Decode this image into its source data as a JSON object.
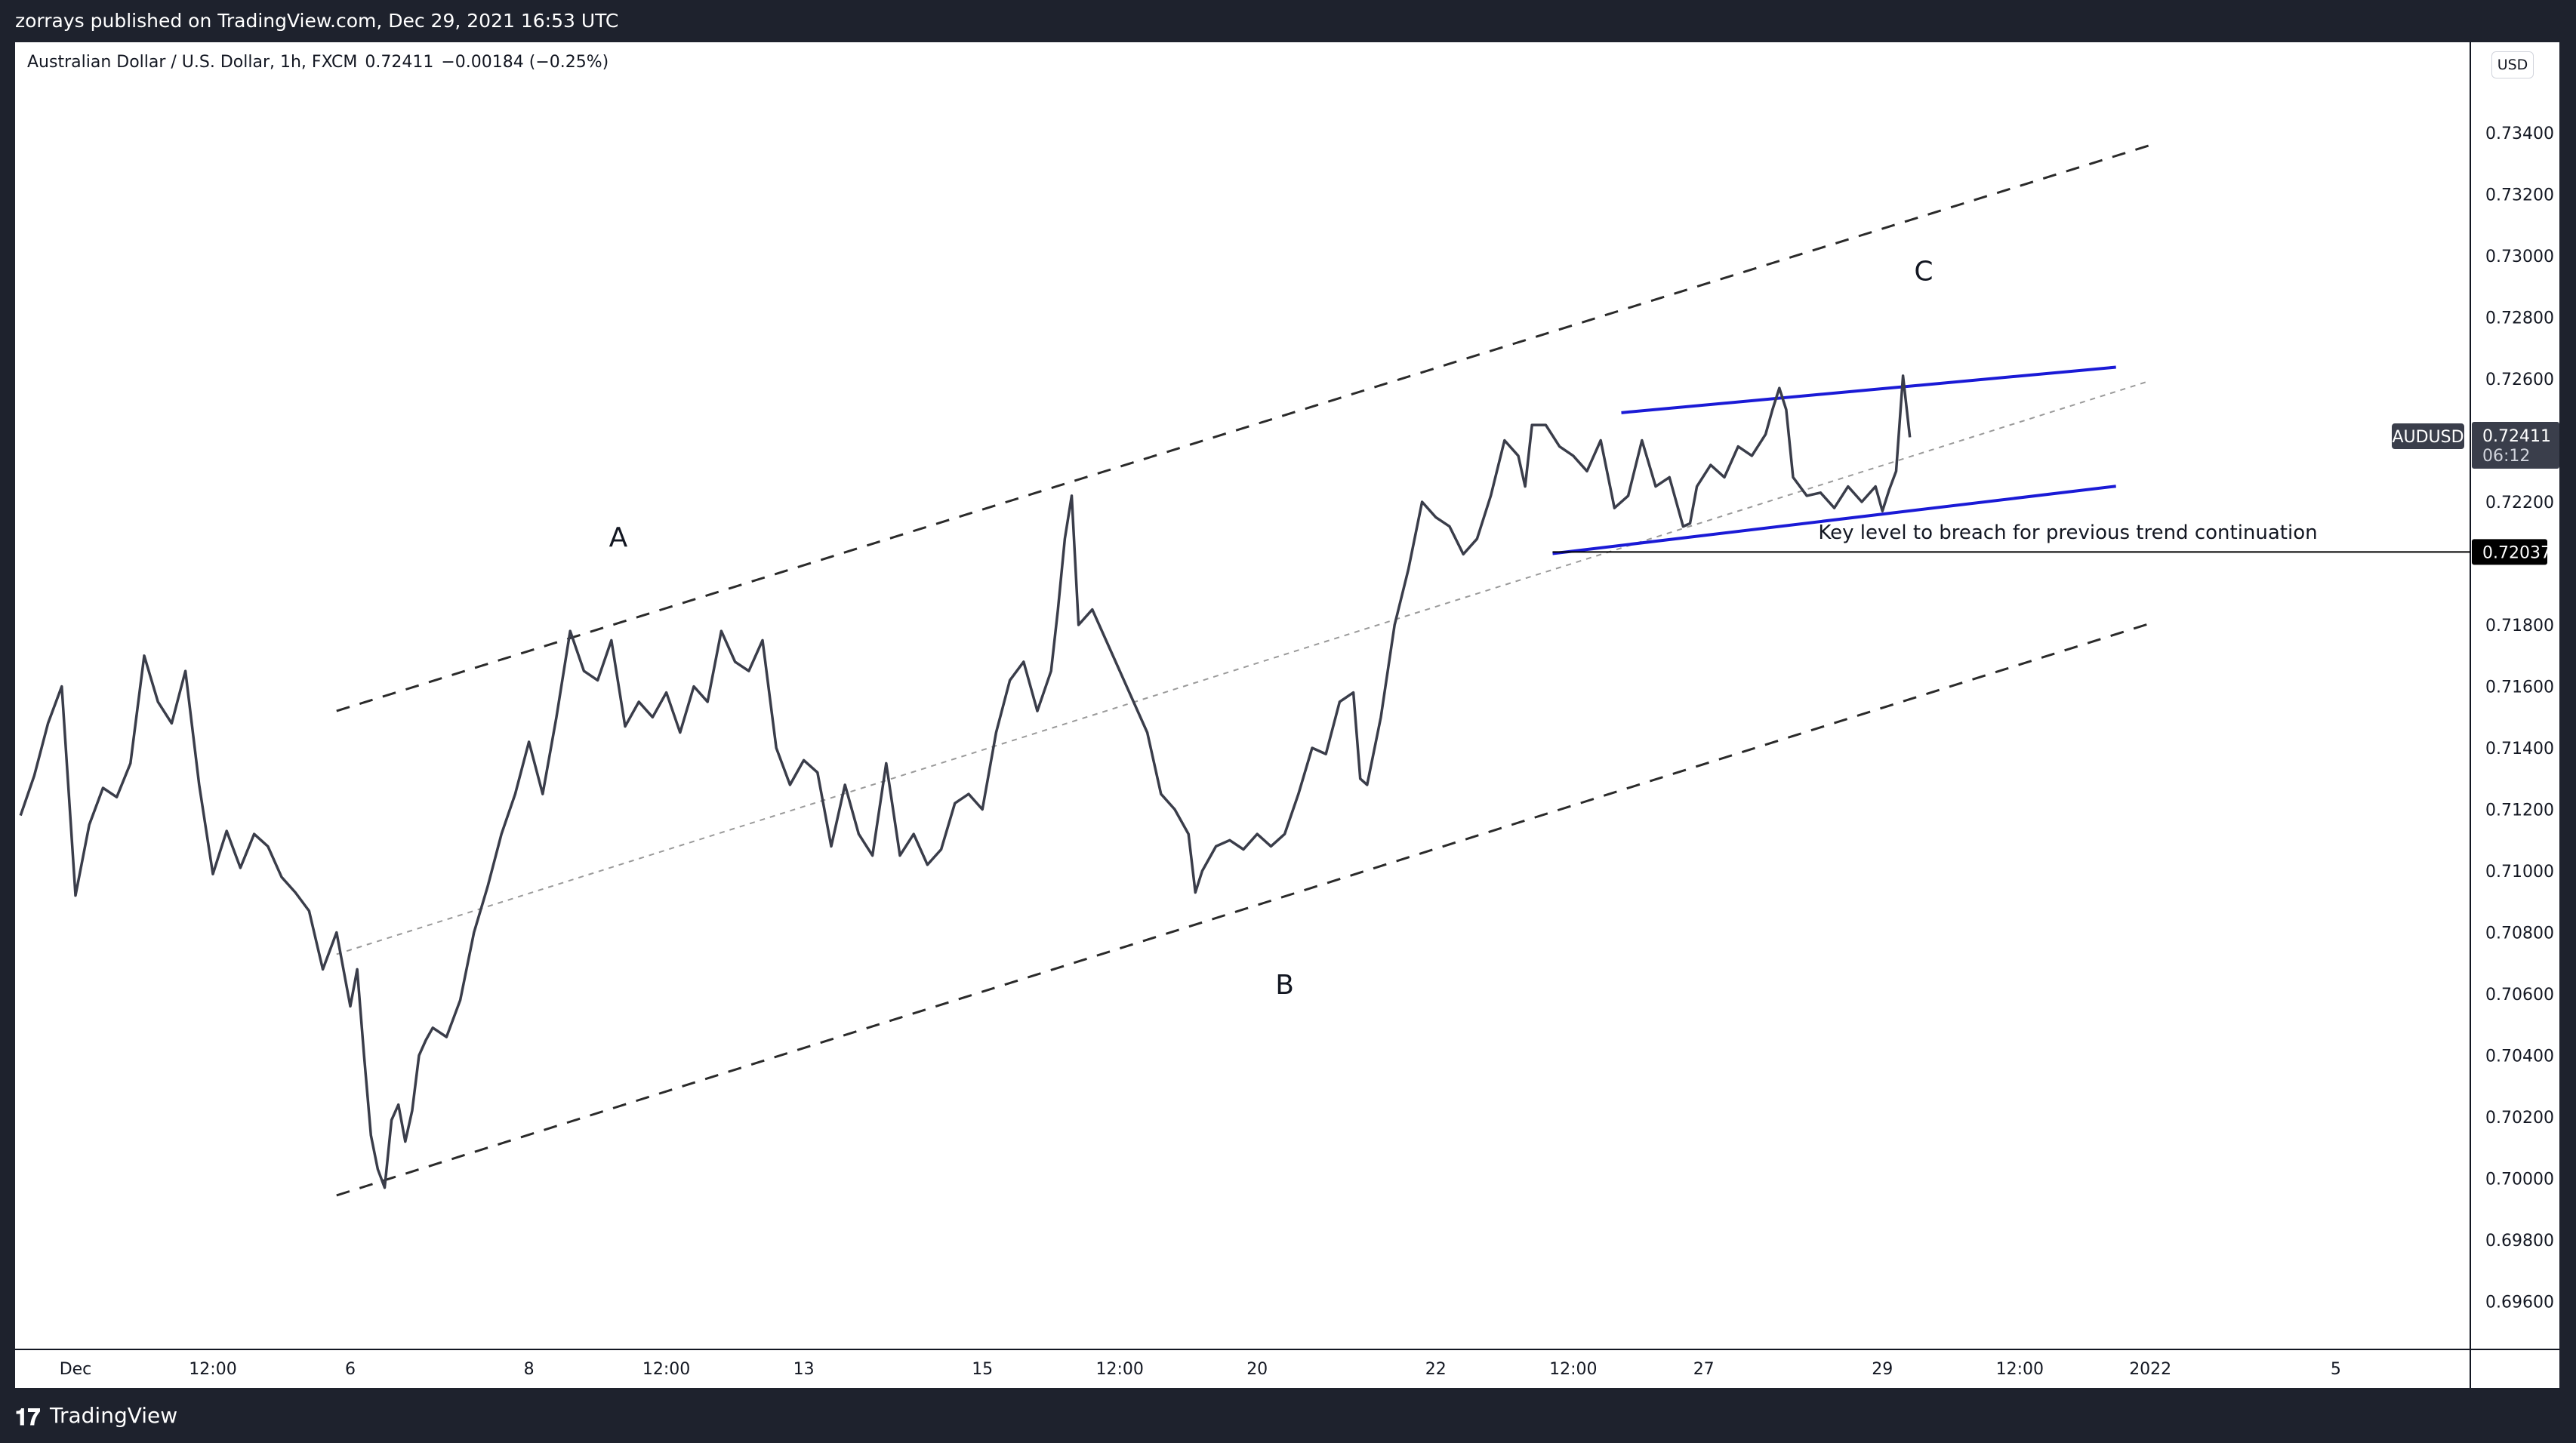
{
  "header": {
    "published_text": "zorrays published on TradingView.com, Dec 29, 2021 16:53 UTC"
  },
  "symbol_info": {
    "title": "Australian Dollar / U.S. Dollar, 1h, FXCM",
    "price": "0.72411",
    "change": "−0.00184 (−0.25%)"
  },
  "currency_button": "USD",
  "footer": {
    "logo_text": "TradingView",
    "logo_icon": "tradingview-logo-icon"
  },
  "colors": {
    "price_line": "#3a3d4a",
    "channel_lines": "#2a2a2a",
    "wedge_lines": "#1a1ad6",
    "badge_bg": "#3a3e4b",
    "key_badge_bg": "#000000"
  },
  "chart_data": {
    "type": "line",
    "symbol": "AUDUSD",
    "timeframe": "1h",
    "ylim": [
      0.695,
      0.736
    ],
    "y_ticks": [
      "0.73400",
      "0.73200",
      "0.73000",
      "0.72800",
      "0.72600",
      "0.72200",
      "0.71800",
      "0.71600",
      "0.71400",
      "0.71200",
      "0.71000",
      "0.70800",
      "0.70600",
      "0.70400",
      "0.70200",
      "0.70000",
      "0.69800",
      "0.69600"
    ],
    "x_ticks": [
      {
        "t": 0.0,
        "label": "Dec"
      },
      {
        "t": 1.0,
        "label": "12:00"
      },
      {
        "t": 2.0,
        "label": "6"
      },
      {
        "t": 3.3,
        "label": "8"
      },
      {
        "t": 4.3,
        "label": "12:00"
      },
      {
        "t": 5.3,
        "label": "13"
      },
      {
        "t": 6.6,
        "label": "15"
      },
      {
        "t": 7.6,
        "label": "12:00"
      },
      {
        "t": 8.6,
        "label": "20"
      },
      {
        "t": 9.9,
        "label": "22"
      },
      {
        "t": 10.9,
        "label": "12:00"
      },
      {
        "t": 11.85,
        "label": "27"
      },
      {
        "t": 13.15,
        "label": "29"
      },
      {
        "t": 14.15,
        "label": "12:00"
      },
      {
        "t": 15.1,
        "label": "2022"
      },
      {
        "t": 16.45,
        "label": "5"
      }
    ],
    "series": [
      {
        "points": [
          [
            -0.4,
            0.7118
          ],
          [
            -0.3,
            0.7131
          ],
          [
            -0.2,
            0.7148
          ],
          [
            -0.1,
            0.716
          ],
          [
            0.0,
            0.7092
          ],
          [
            0.1,
            0.7115
          ],
          [
            0.2,
            0.7127
          ],
          [
            0.3,
            0.7124
          ],
          [
            0.4,
            0.7135
          ],
          [
            0.5,
            0.717
          ],
          [
            0.6,
            0.7155
          ],
          [
            0.7,
            0.7148
          ],
          [
            0.8,
            0.7165
          ],
          [
            0.9,
            0.7128
          ],
          [
            1.0,
            0.7099
          ],
          [
            1.1,
            0.7113
          ],
          [
            1.2,
            0.7101
          ],
          [
            1.3,
            0.7112
          ],
          [
            1.4,
            0.7108
          ],
          [
            1.5,
            0.7098
          ],
          [
            1.6,
            0.7093
          ],
          [
            1.7,
            0.7087
          ],
          [
            1.8,
            0.7068
          ],
          [
            1.9,
            0.708
          ],
          [
            2.0,
            0.7056
          ],
          [
            2.05,
            0.7068
          ],
          [
            2.1,
            0.704
          ],
          [
            2.15,
            0.7014
          ],
          [
            2.2,
            0.7003
          ],
          [
            2.25,
            0.6997
          ],
          [
            2.3,
            0.7019
          ],
          [
            2.35,
            0.7024
          ],
          [
            2.4,
            0.7012
          ],
          [
            2.45,
            0.7022
          ],
          [
            2.5,
            0.704
          ],
          [
            2.55,
            0.7045
          ],
          [
            2.6,
            0.7049
          ],
          [
            2.7,
            0.7046
          ],
          [
            2.8,
            0.7058
          ],
          [
            2.9,
            0.708
          ],
          [
            3.0,
            0.7095
          ],
          [
            3.1,
            0.7112
          ],
          [
            3.2,
            0.7125
          ],
          [
            3.3,
            0.7142
          ],
          [
            3.4,
            0.7125
          ],
          [
            3.5,
            0.715
          ],
          [
            3.6,
            0.7178
          ],
          [
            3.7,
            0.7165
          ],
          [
            3.8,
            0.7162
          ],
          [
            3.9,
            0.7175
          ],
          [
            4.0,
            0.7147
          ],
          [
            4.1,
            0.7155
          ],
          [
            4.2,
            0.715
          ],
          [
            4.3,
            0.7158
          ],
          [
            4.4,
            0.7145
          ],
          [
            4.5,
            0.716
          ],
          [
            4.6,
            0.7155
          ],
          [
            4.7,
            0.7178
          ],
          [
            4.8,
            0.7168
          ],
          [
            4.9,
            0.7165
          ],
          [
            5.0,
            0.7175
          ],
          [
            5.1,
            0.714
          ],
          [
            5.2,
            0.7128
          ],
          [
            5.3,
            0.7136
          ],
          [
            5.4,
            0.7132
          ],
          [
            5.5,
            0.7108
          ],
          [
            5.6,
            0.7128
          ],
          [
            5.7,
            0.7112
          ],
          [
            5.8,
            0.7105
          ],
          [
            5.9,
            0.7135
          ],
          [
            6.0,
            0.7105
          ],
          [
            6.1,
            0.7112
          ],
          [
            6.2,
            0.7102
          ],
          [
            6.3,
            0.7107
          ],
          [
            6.4,
            0.7122
          ],
          [
            6.5,
            0.7125
          ],
          [
            6.6,
            0.712
          ],
          [
            6.7,
            0.7145
          ],
          [
            6.8,
            0.7162
          ],
          [
            6.9,
            0.7168
          ],
          [
            7.0,
            0.7152
          ],
          [
            7.1,
            0.7165
          ],
          [
            7.15,
            0.7185
          ],
          [
            7.2,
            0.7208
          ],
          [
            7.25,
            0.7222
          ],
          [
            7.3,
            0.718
          ],
          [
            7.4,
            0.7185
          ],
          [
            7.5,
            0.7175
          ],
          [
            7.6,
            0.7165
          ],
          [
            7.7,
            0.7155
          ],
          [
            7.8,
            0.7145
          ],
          [
            7.9,
            0.7125
          ],
          [
            8.0,
            0.712
          ],
          [
            8.1,
            0.7112
          ],
          [
            8.15,
            0.7093
          ],
          [
            8.2,
            0.71
          ],
          [
            8.3,
            0.7108
          ],
          [
            8.4,
            0.711
          ],
          [
            8.5,
            0.7107
          ],
          [
            8.6,
            0.7112
          ],
          [
            8.7,
            0.7108
          ],
          [
            8.8,
            0.7112
          ],
          [
            8.9,
            0.7125
          ],
          [
            9.0,
            0.714
          ],
          [
            9.1,
            0.7138
          ],
          [
            9.2,
            0.7155
          ],
          [
            9.3,
            0.7158
          ],
          [
            9.35,
            0.713
          ],
          [
            9.4,
            0.7128
          ],
          [
            9.5,
            0.715
          ],
          [
            9.55,
            0.7165
          ],
          [
            9.6,
            0.718
          ],
          [
            9.7,
            0.7198
          ],
          [
            9.8,
            0.722
          ],
          [
            9.9,
            0.7215
          ],
          [
            10.0,
            0.7212
          ],
          [
            10.1,
            0.7203
          ],
          [
            10.2,
            0.7208
          ],
          [
            10.3,
            0.7222
          ],
          [
            10.4,
            0.724
          ],
          [
            10.5,
            0.7235
          ],
          [
            10.55,
            0.7225
          ],
          [
            10.6,
            0.7245
          ],
          [
            10.7,
            0.7245
          ],
          [
            10.8,
            0.7238
          ],
          [
            10.9,
            0.7235
          ],
          [
            11.0,
            0.723
          ],
          [
            11.1,
            0.724
          ],
          [
            11.2,
            0.7218
          ],
          [
            11.3,
            0.7222
          ],
          [
            11.4,
            0.724
          ],
          [
            11.5,
            0.7225
          ],
          [
            11.6,
            0.7228
          ],
          [
            11.7,
            0.7212
          ],
          [
            11.75,
            0.7213
          ],
          [
            11.8,
            0.7225
          ],
          [
            11.9,
            0.7232
          ],
          [
            12.0,
            0.7228
          ],
          [
            12.1,
            0.7238
          ],
          [
            12.2,
            0.7235
          ],
          [
            12.3,
            0.7242
          ],
          [
            12.35,
            0.725
          ],
          [
            12.4,
            0.7257
          ],
          [
            12.45,
            0.725
          ],
          [
            12.5,
            0.7228
          ],
          [
            12.6,
            0.7222
          ],
          [
            12.7,
            0.7223
          ],
          [
            12.8,
            0.7218
          ],
          [
            12.9,
            0.7225
          ],
          [
            13.0,
            0.722
          ],
          [
            13.1,
            0.7225
          ],
          [
            13.15,
            0.7217
          ],
          [
            13.2,
            0.7224
          ],
          [
            13.25,
            0.723
          ],
          [
            13.3,
            0.7261
          ],
          [
            13.35,
            0.7241
          ]
        ]
      }
    ],
    "trendlines": [
      {
        "style": "dashed",
        "from": [
          1.9,
          0.7152
        ],
        "to": [
          15.1,
          0.7336
        ]
      },
      {
        "style": "dashed",
        "from": [
          1.9,
          0.69945
        ],
        "to": [
          15.1,
          0.71805
        ]
      },
      {
        "style": "dotted",
        "from": [
          1.9,
          0.70729
        ],
        "to": [
          15.1,
          0.72594
        ]
      },
      {
        "style": "wedge",
        "from": [
          11.25,
          0.7249
        ],
        "to": [
          14.85,
          0.72638
        ]
      },
      {
        "style": "wedge",
        "from": [
          10.75,
          0.72032
        ],
        "to": [
          14.85,
          0.72251
        ]
      },
      {
        "style": "horizontal",
        "from": [
          10.75,
          0.72037
        ],
        "to": [
          18.0,
          0.72037
        ]
      }
    ],
    "annotations": [
      {
        "text": "A",
        "x": 3.95,
        "y": 0.72055
      },
      {
        "text": "B",
        "x": 8.8,
        "y": 0.706
      },
      {
        "text": "C",
        "x": 13.45,
        "y": 0.7292
      },
      {
        "text": "Key level to breach for previous trend continuation",
        "x": 14.5,
        "y": 0.7208
      }
    ],
    "last_price_badge": {
      "symbol": "AUDUSD",
      "price": "0.72411",
      "countdown": "06:12",
      "value": 0.72411
    },
    "key_level_badge": {
      "price": "0.72037",
      "value": 0.72037
    }
  }
}
